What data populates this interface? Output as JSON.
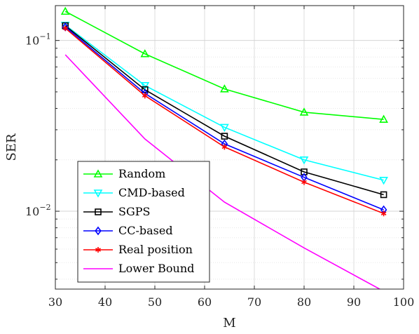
{
  "chart_data": {
    "type": "line",
    "xlabel": "M",
    "ylabel": "SER",
    "yscale": "log",
    "xlim": [
      30,
      100
    ],
    "ylim": [
      0.0035,
      0.16
    ],
    "grid": true,
    "legend_position": "lower-left",
    "x_ticks": [
      30,
      40,
      50,
      60,
      70,
      80,
      90,
      100
    ],
    "y_ticks": [
      {
        "value": 0.1,
        "base": "10",
        "exp": "−1"
      },
      {
        "value": 0.01,
        "base": "10",
        "exp": "−2"
      }
    ],
    "series": [
      {
        "name": "Random",
        "color": "#00ff00",
        "marker": "triangle-up",
        "x": [
          32,
          48,
          64,
          80,
          96
        ],
        "y": [
          0.148,
          0.0835,
          0.052,
          0.038,
          0.0345
        ]
      },
      {
        "name": "CMD-based",
        "color": "#00ffff",
        "marker": "triangle-down",
        "x": [
          32,
          48,
          64,
          80,
          96
        ],
        "y": [
          0.123,
          0.0545,
          0.031,
          0.02,
          0.0152
        ]
      },
      {
        "name": "SGPS",
        "color": "#000000",
        "marker": "square",
        "x": [
          32,
          48,
          64,
          80,
          96
        ],
        "y": [
          0.122,
          0.0515,
          0.0275,
          0.017,
          0.0125
        ]
      },
      {
        "name": "CC-based",
        "color": "#0000ff",
        "marker": "diamond",
        "x": [
          32,
          48,
          64,
          80,
          96
        ],
        "y": [
          0.12,
          0.049,
          0.0248,
          0.0158,
          0.0102
        ]
      },
      {
        "name": "Real position",
        "color": "#ff0000",
        "marker": "asterisk",
        "x": [
          32,
          48,
          64,
          80,
          96
        ],
        "y": [
          0.118,
          0.0475,
          0.0238,
          0.0148,
          0.0097
        ]
      },
      {
        "name": "Lower Bound",
        "color": "#ff00ff",
        "marker": "none",
        "x": [
          32,
          48,
          64,
          80,
          96
        ],
        "y": [
          0.0825,
          0.0265,
          0.0113,
          0.0061,
          0.0034
        ]
      }
    ]
  }
}
